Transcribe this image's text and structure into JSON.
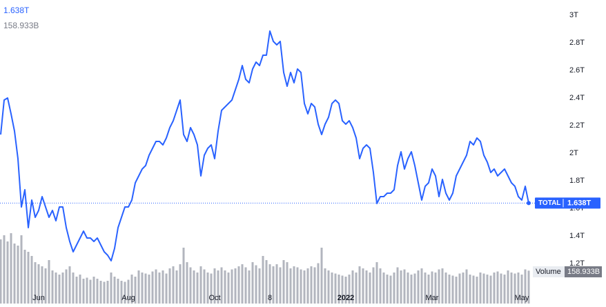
{
  "chart_data": {
    "type": "line",
    "categories": [
      null,
      null,
      null,
      null,
      null,
      null,
      null,
      null,
      null,
      null,
      null,
      "Jun",
      null,
      null,
      null,
      null,
      null,
      null,
      null,
      null,
      null,
      null,
      null,
      null,
      null,
      null,
      null,
      null,
      null,
      null,
      null,
      null,
      null,
      null,
      null,
      null,
      null,
      "Aug",
      null,
      null,
      null,
      null,
      null,
      null,
      null,
      null,
      null,
      null,
      null,
      null,
      null,
      null,
      null,
      null,
      null,
      null,
      null,
      null,
      null,
      null,
      null,
      null,
      "Oct",
      null,
      null,
      null,
      null,
      null,
      null,
      null,
      null,
      null,
      null,
      null,
      null,
      null,
      null,
      null,
      "8",
      null,
      null,
      null,
      null,
      null,
      null,
      null,
      null,
      null,
      null,
      null,
      null,
      null,
      null,
      null,
      null,
      null,
      null,
      null,
      null,
      null,
      "2022",
      null,
      null,
      null,
      null,
      null,
      null,
      null,
      null,
      null,
      null,
      null,
      null,
      null,
      null,
      null,
      null,
      null,
      null,
      null,
      null,
      null,
      null,
      null,
      null,
      "Mar",
      null,
      null,
      null,
      null,
      null,
      null,
      null,
      null,
      null,
      null,
      null,
      null,
      null,
      null,
      null,
      null,
      null,
      null,
      null,
      null,
      null,
      null,
      null,
      null,
      null,
      "May",
      null,
      null
    ],
    "series": [
      {
        "name": "TOTAL",
        "color": "#2962ff",
        "last_value_label": "1.638T",
        "values": [
          2.135,
          2.385,
          2.4,
          2.285,
          2.16,
          1.96,
          1.61,
          1.735,
          1.46,
          1.66,
          1.535,
          1.585,
          1.685,
          1.61,
          1.535,
          1.585,
          1.51,
          1.61,
          1.61,
          1.46,
          1.36,
          1.285,
          1.335,
          1.385,
          1.435,
          1.385,
          1.385,
          1.36,
          1.385,
          1.335,
          1.285,
          1.26,
          1.22,
          1.31,
          1.46,
          1.535,
          1.61,
          1.61,
          1.66,
          1.785,
          1.835,
          1.885,
          1.91,
          1.985,
          2.035,
          2.085,
          2.085,
          2.06,
          2.11,
          2.185,
          2.235,
          2.31,
          2.385,
          2.135,
          2.085,
          2.185,
          2.135,
          2.06,
          1.835,
          1.985,
          2.035,
          2.06,
          1.96,
          2.16,
          2.31,
          2.335,
          2.36,
          2.385,
          2.46,
          2.535,
          2.635,
          2.535,
          2.51,
          2.61,
          2.66,
          2.635,
          2.71,
          2.71,
          2.885,
          2.81,
          2.785,
          2.81,
          2.585,
          2.485,
          2.585,
          2.51,
          2.61,
          2.585,
          2.36,
          2.285,
          2.36,
          2.335,
          2.21,
          2.135,
          2.21,
          2.26,
          2.36,
          2.385,
          2.36,
          2.235,
          2.21,
          2.235,
          2.185,
          2.11,
          1.96,
          2.035,
          2.06,
          2.035,
          1.86,
          1.635,
          1.685,
          1.685,
          1.71,
          1.71,
          1.735,
          1.91,
          2.01,
          1.885,
          1.96,
          2.01,
          1.91,
          1.785,
          1.66,
          1.76,
          1.785,
          1.885,
          1.835,
          1.685,
          1.81,
          1.71,
          1.66,
          1.71,
          1.835,
          1.885,
          1.935,
          1.985,
          2.085,
          2.06,
          2.11,
          2.085,
          1.985,
          1.935,
          1.86,
          1.885,
          1.835,
          1.86,
          1.885,
          1.835,
          1.785,
          1.76,
          1.685,
          1.66,
          1.76,
          1.638
        ]
      },
      {
        "name": "Volume",
        "type": "bar",
        "color": "#b2b5be",
        "last_value_label": "158.933B",
        "values": [
          310,
          330,
          300,
          340,
          290,
          280,
          330,
          260,
          250,
          230,
          200,
          190,
          180,
          170,
          210,
          160,
          150,
          140,
          150,
          165,
          180,
          150,
          130,
          140,
          120,
          125,
          115,
          130,
          120,
          110,
          105,
          110,
          150,
          130,
          120,
          110,
          105,
          115,
          140,
          130,
          160,
          150,
          145,
          140,
          155,
          165,
          150,
          160,
          145,
          170,
          180,
          160,
          190,
          270,
          200,
          175,
          160,
          150,
          180,
          165,
          150,
          145,
          170,
          160,
          175,
          160,
          150,
          165,
          170,
          180,
          190,
          175,
          160,
          200,
          185,
          170,
          230,
          210,
          190,
          180,
          190,
          175,
          210,
          200,
          170,
          180,
          175,
          165,
          160,
          170,
          180,
          175,
          195,
          270,
          170,
          160,
          150,
          145,
          140,
          135,
          130,
          140,
          160,
          150,
          180,
          170,
          160,
          150,
          175,
          200,
          170,
          150,
          140,
          135,
          150,
          175,
          160,
          165,
          150,
          140,
          145,
          160,
          170,
          150,
          140,
          155,
          150,
          165,
          170,
          150,
          140,
          135,
          130,
          145,
          150,
          165,
          140,
          135,
          130,
          150,
          145,
          140,
          135,
          150,
          155,
          145,
          140,
          160,
          150,
          145,
          150,
          140,
          165,
          158.933
        ]
      }
    ],
    "ylim": [
      0.885,
      3.11
    ],
    "yticks": [
      {
        "value": 1.2,
        "label": "1.2T"
      },
      {
        "value": 1.4,
        "label": "1.4T"
      },
      {
        "value": 1.6,
        "label": "1.6T"
      },
      {
        "value": 1.8,
        "label": "1.8T"
      },
      {
        "value": 2,
        "label": "2T"
      },
      {
        "value": 2.2,
        "label": "2.2T"
      },
      {
        "value": 2.4,
        "label": "2.4T"
      },
      {
        "value": 2.6,
        "label": "2.6T"
      },
      {
        "value": 2.8,
        "label": "2.8T"
      },
      {
        "value": 3,
        "label": "3T"
      }
    ],
    "grid": false
  }
}
